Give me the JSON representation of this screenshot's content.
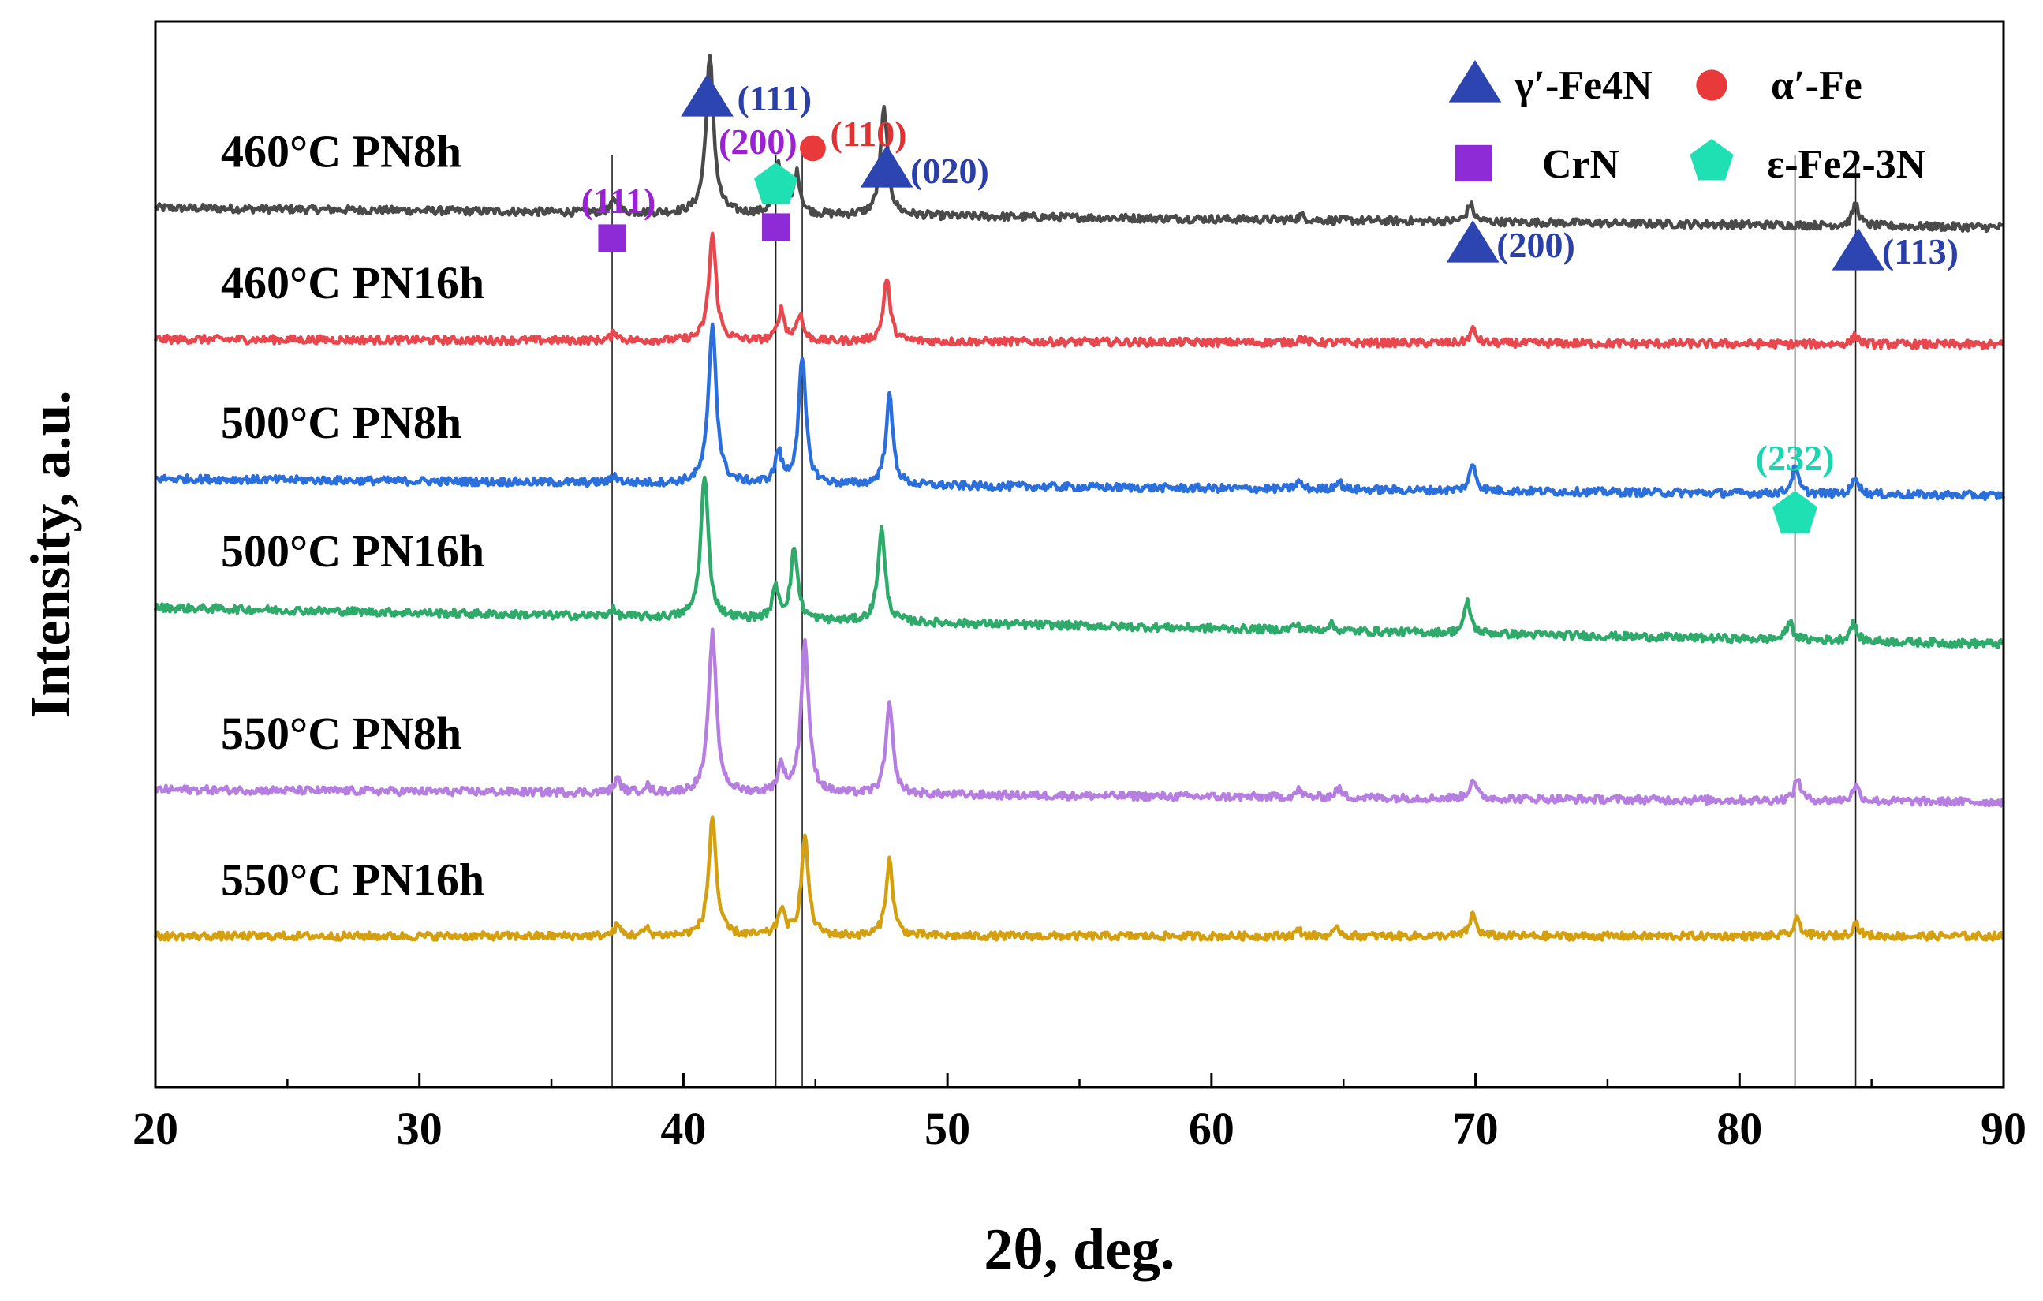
{
  "chart_data": {
    "type": "line",
    "title": "",
    "xlabel": "2θ, deg.",
    "ylabel": "Intensity, a.u.",
    "xlim": [
      20,
      90
    ],
    "x_ticks": [
      "20",
      "30",
      "40",
      "50",
      "60",
      "70",
      "80",
      "90"
    ],
    "y_ticks_shown": false,
    "grid": false,
    "series": [
      {
        "name": "460°C PN8h",
        "color": "#4a4a4a",
        "baseline_start": 9.9,
        "baseline_end": 9.68,
        "peaks": [
          [
            37.4,
            0.15
          ],
          [
            41.0,
            1.75
          ],
          [
            43.6,
            0.55
          ],
          [
            44.3,
            0.45
          ],
          [
            47.6,
            1.2
          ],
          [
            63.4,
            0.05
          ],
          [
            69.8,
            0.2
          ],
          [
            84.4,
            0.25
          ]
        ]
      },
      {
        "name": "460°C PN16h",
        "color": "#e8474d",
        "baseline_start": 8.42,
        "baseline_end": 8.36,
        "peaks": [
          [
            37.4,
            0.1
          ],
          [
            41.1,
            1.2
          ],
          [
            43.7,
            0.35
          ],
          [
            44.4,
            0.3
          ],
          [
            47.7,
            0.7
          ],
          [
            63.4,
            0.05
          ],
          [
            69.9,
            0.15
          ],
          [
            84.4,
            0.1
          ]
        ]
      },
      {
        "name": "500°C PN8h",
        "color": "#2a6fdb",
        "baseline_start": 6.85,
        "baseline_end": 6.66,
        "peaks": [
          [
            37.4,
            0.08
          ],
          [
            41.1,
            1.8
          ],
          [
            43.6,
            0.35
          ],
          [
            44.5,
            1.4
          ],
          [
            47.8,
            1.0
          ],
          [
            63.3,
            0.08
          ],
          [
            64.8,
            0.1
          ],
          [
            69.9,
            0.3
          ],
          [
            82.1,
            0.3
          ],
          [
            84.4,
            0.2
          ]
        ]
      },
      {
        "name": "500°C PN16h",
        "color": "#2eaa6a",
        "baseline_start": 5.4,
        "baseline_end": 4.99,
        "peaks": [
          [
            37.3,
            0.08
          ],
          [
            40.8,
            1.6
          ],
          [
            43.5,
            0.35
          ],
          [
            44.2,
            0.8
          ],
          [
            47.5,
            1.05
          ],
          [
            63.2,
            0.06
          ],
          [
            64.5,
            0.08
          ],
          [
            69.7,
            0.35
          ],
          [
            81.9,
            0.2
          ],
          [
            84.3,
            0.2
          ]
        ]
      },
      {
        "name": "550°C PN8h",
        "color": "#b57ee0",
        "baseline_start": 3.35,
        "baseline_end": 3.21,
        "peaks": [
          [
            37.5,
            0.15
          ],
          [
            38.6,
            0.08
          ],
          [
            41.1,
            1.8
          ],
          [
            43.7,
            0.3
          ],
          [
            44.6,
            1.7
          ],
          [
            47.8,
            1.0
          ],
          [
            63.3,
            0.08
          ],
          [
            64.8,
            0.1
          ],
          [
            69.9,
            0.22
          ],
          [
            82.2,
            0.25
          ],
          [
            84.4,
            0.18
          ]
        ]
      },
      {
        "name": "550°C PN16h",
        "color": "#d4a010",
        "baseline_start": 1.7,
        "baseline_end": 1.7,
        "peaks": [
          [
            37.5,
            0.12
          ],
          [
            38.6,
            0.08
          ],
          [
            41.1,
            1.35
          ],
          [
            43.7,
            0.3
          ],
          [
            44.6,
            1.1
          ],
          [
            47.8,
            0.85
          ],
          [
            63.3,
            0.06
          ],
          [
            64.8,
            0.08
          ],
          [
            69.9,
            0.25
          ],
          [
            82.2,
            0.2
          ],
          [
            84.4,
            0.15
          ]
        ]
      }
    ],
    "reference_lines": [
      37.3,
      43.5,
      44.5,
      82.1,
      84.4
    ],
    "peak_annotations": [
      {
        "label": "(111)",
        "phase": "CrN",
        "x": 37.3,
        "label_color": "#9b22d4",
        "marker": "square",
        "marker_color": "#8e2bd6"
      },
      {
        "label": "(111)",
        "phase": "γ′-Fe4N",
        "x": 41.0,
        "label_color": "#2b3fa8",
        "marker": "triangle",
        "marker_color": "#2c45b0"
      },
      {
        "label": "(200)",
        "phase": "CrN / ε-Fe2-3N",
        "x": 43.5,
        "label_color": "#9b22d4",
        "marker": "square+pentagon",
        "marker_color": "#8e2bd6"
      },
      {
        "label": "(110)",
        "phase": "α′-Fe",
        "x": 44.8,
        "label_color": "#e03232",
        "marker": "circle",
        "marker_color": "#e83a3a"
      },
      {
        "label": "(020)",
        "phase": "γ′-Fe4N",
        "x": 47.7,
        "label_color": "#2b3fa8",
        "marker": "triangle",
        "marker_color": "#2c45b0"
      },
      {
        "label": "(200)",
        "phase": "γ′-Fe4N",
        "x": 69.9,
        "label_color": "#2b3fa8",
        "marker": "triangle",
        "marker_color": "#2c45b0"
      },
      {
        "label": "(232)",
        "phase": "ε-Fe2-3N",
        "x": 82.1,
        "label_color": "#17d6b0",
        "marker": "pentagon",
        "marker_color": "#1ee0b2"
      },
      {
        "label": "(113)",
        "phase": "γ′-Fe4N",
        "x": 84.4,
        "label_color": "#2b3fa8",
        "marker": "triangle",
        "marker_color": "#2c45b0"
      }
    ],
    "legend": {
      "placement": "top-right",
      "items": [
        {
          "label": "γ′-Fe4N",
          "marker": "triangle",
          "color": "#2c45b0"
        },
        {
          "label": "α′-Fe",
          "marker": "circle",
          "color": "#e83a3a"
        },
        {
          "label": "CrN",
          "marker": "square",
          "color": "#8e2bd6"
        },
        {
          "label": "ε-Fe2-3N",
          "marker": "pentagon",
          "color": "#1ee0b2"
        }
      ]
    }
  }
}
